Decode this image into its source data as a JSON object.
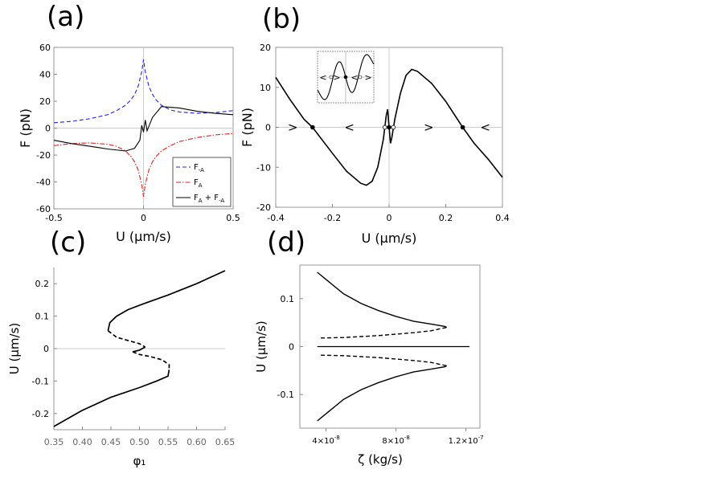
{
  "chart_data": [
    {
      "panel_label": "(a)",
      "type": "line",
      "xlabel": "U (μm/s)",
      "ylabel": "F (pN)",
      "xlim": [
        -0.5,
        0.5
      ],
      "ylim": [
        -60,
        60
      ],
      "xticks": [
        "-0.5",
        "0",
        "0.5"
      ],
      "yticks": [
        "-60",
        "-40",
        "-20",
        "0",
        "20",
        "40",
        "60"
      ],
      "legend_position": "bottom-right",
      "series": [
        {
          "name": "F-A",
          "legend_main": "F",
          "legend_sub": "-A",
          "color": "#2222ee",
          "dash": "dashed",
          "x": [
            -0.5,
            -0.4,
            -0.3,
            -0.2,
            -0.15,
            -0.1,
            -0.07,
            -0.05,
            -0.03,
            -0.01,
            0,
            0.01,
            0.03,
            0.05,
            0.07,
            0.1,
            0.15,
            0.2,
            0.3,
            0.4,
            0.5
          ],
          "y": [
            4,
            5,
            7,
            10,
            13,
            17,
            21,
            25,
            31,
            42,
            51,
            42,
            31,
            25,
            21,
            17,
            13.5,
            12,
            11,
            11.5,
            13
          ]
        },
        {
          "name": "FA",
          "legend_main": "F",
          "legend_sub": "A",
          "color": "#dd2222",
          "dash": "dashdot",
          "x": [
            -0.5,
            -0.4,
            -0.3,
            -0.2,
            -0.15,
            -0.1,
            -0.07,
            -0.05,
            -0.03,
            -0.01,
            0,
            0.01,
            0.03,
            0.05,
            0.07,
            0.1,
            0.15,
            0.2,
            0.3,
            0.4,
            0.5
          ],
          "y": [
            -13,
            -11.5,
            -11,
            -12,
            -13.5,
            -17,
            -21,
            -25,
            -31,
            -42,
            -51,
            -42,
            -31,
            -25,
            -21,
            -17,
            -13,
            -10,
            -7,
            -5,
            -4
          ]
        },
        {
          "name": "FA + F-A",
          "legend_main": "F",
          "legend_sub": "A",
          "legend_rest": " + F",
          "legend_sub2": "-A",
          "color": "#000000",
          "dash": "solid",
          "x": [
            -0.5,
            -0.4,
            -0.3,
            -0.2,
            -0.1,
            -0.05,
            -0.02,
            -0.01,
            0,
            0.01,
            0.02,
            0.05,
            0.1,
            0.2,
            0.3,
            0.4,
            0.5
          ],
          "y": [
            -9,
            -11.5,
            -13.5,
            -15.5,
            -17,
            -15,
            -9,
            2,
            -3,
            6,
            -2,
            8,
            16,
            15,
            12.5,
            11,
            10
          ]
        }
      ]
    },
    {
      "panel_label": "(b)",
      "type": "line",
      "xlabel": "U (μm/s)",
      "ylabel": "F (pN)",
      "xlim": [
        -0.4,
        0.4
      ],
      "ylim": [
        -20,
        20
      ],
      "xticks": [
        "-0.4",
        "-0.2",
        "0",
        "0.2",
        "0.4"
      ],
      "yticks": [
        "-20",
        "-10",
        "0",
        "10",
        "20"
      ],
      "series": [
        {
          "name": "force",
          "color": "#000000",
          "x": [
            -0.4,
            -0.35,
            -0.3,
            -0.27,
            -0.2,
            -0.15,
            -0.1,
            -0.08,
            -0.06,
            -0.04,
            -0.02,
            -0.01,
            -0.005,
            0,
            0.005,
            0.01,
            0.02,
            0.04,
            0.06,
            0.08,
            0.1,
            0.15,
            0.2,
            0.26,
            0.3,
            0.35,
            0.4
          ],
          "y": [
            12.5,
            7,
            2,
            0,
            -6.5,
            -11,
            -14,
            -14.5,
            -13.5,
            -10,
            -3,
            3,
            4.5,
            0,
            -4,
            -2.5,
            2,
            8.5,
            13,
            14.5,
            14,
            11,
            6.5,
            0,
            -4,
            -8,
            -12.5
          ]
        }
      ],
      "fixed_points": [
        {
          "x": -0.27,
          "stable": true
        },
        {
          "x": -0.015,
          "stable": false
        },
        {
          "x": 0,
          "stable": true
        },
        {
          "x": 0.015,
          "stable": false
        },
        {
          "x": 0.26,
          "stable": true
        }
      ],
      "flow_arrows": [
        {
          "x": -0.34,
          "glyph": ">"
        },
        {
          "x": -0.14,
          "glyph": "<"
        },
        {
          "x": 0.14,
          "glyph": ">"
        },
        {
          "x": 0.34,
          "glyph": "<"
        }
      ],
      "inset": {
        "glyphs_left": "<",
        "glyphs_mid": ">",
        "glyphs_mid2": "<",
        "glyphs_right": ">"
      }
    },
    {
      "panel_label": "(c)",
      "type": "line",
      "xlabel": "φ₁",
      "ylabel": "U (μm/s)",
      "xlim": [
        0.35,
        0.65
      ],
      "ylim": [
        -0.25,
        0.25
      ],
      "xticks": [
        "0.35",
        "0.40",
        "0.45",
        "0.50",
        "0.55",
        "0.60",
        "0.65"
      ],
      "yticks": [
        "-0.2",
        "-0.1",
        "0",
        "0.1",
        "0.2"
      ],
      "series": [
        {
          "name": "upper stable",
          "style": "solid",
          "x": [
            0.445,
            0.448,
            0.46,
            0.48,
            0.51,
            0.55,
            0.6,
            0.65
          ],
          "y": [
            0.055,
            0.08,
            0.1,
            0.12,
            0.14,
            0.165,
            0.2,
            0.24
          ]
        },
        {
          "name": "upper unstable",
          "style": "dashed",
          "x": [
            0.445,
            0.46,
            0.48,
            0.5,
            0.51
          ],
          "y": [
            0.055,
            0.035,
            0.025,
            0.015,
            0.005
          ]
        },
        {
          "name": "middle stable",
          "style": "solid",
          "x": [
            0.51,
            0.5,
            0.488
          ],
          "y": [
            0.005,
            -0.005,
            -0.01
          ]
        },
        {
          "name": "lower unstable",
          "style": "dashed",
          "x": [
            0.488,
            0.5,
            0.52,
            0.54,
            0.552,
            0.552
          ],
          "y": [
            -0.01,
            -0.018,
            -0.025,
            -0.035,
            -0.05,
            -0.065
          ]
        },
        {
          "name": "lower stable",
          "style": "solid",
          "x": [
            0.552,
            0.55,
            0.53,
            0.5,
            0.45,
            0.4,
            0.35
          ],
          "y": [
            -0.065,
            -0.085,
            -0.1,
            -0.12,
            -0.15,
            -0.19,
            -0.24
          ]
        }
      ]
    },
    {
      "panel_label": "(d)",
      "type": "line",
      "xlabel": "ζ (kg/s)",
      "ylabel": "U (μm/s)",
      "xlim": [
        2.5e-08,
        1.28e-07
      ],
      "ylim": [
        -0.17,
        0.17
      ],
      "xticks": [
        {
          "base": "4×10",
          "exp": "-8",
          "value": 4e-08
        },
        {
          "base": "8×10",
          "exp": "-8",
          "value": 8e-08
        },
        {
          "base": "1.2×10",
          "exp": "-7",
          "value": 1.2e-07
        }
      ],
      "yticks": [
        "-0.1",
        "0",
        "0.1"
      ],
      "series": [
        {
          "name": "upper stable",
          "style": "solid",
          "x": [
            3.5e-08,
            4e-08,
            5e-08,
            6e-08,
            7e-08,
            8e-08,
            9e-08,
            1e-07,
            1.08e-07,
            1.09e-07
          ],
          "y": [
            0.155,
            0.14,
            0.11,
            0.09,
            0.075,
            0.063,
            0.053,
            0.047,
            0.042,
            0.04
          ]
        },
        {
          "name": "upper unstable",
          "style": "dashed",
          "x": [
            3.7e-08,
            5e-08,
            6e-08,
            7e-08,
            8e-08,
            9e-08,
            1e-07,
            1.09e-07
          ],
          "y": [
            0.018,
            0.019,
            0.021,
            0.023,
            0.026,
            0.029,
            0.033,
            0.04
          ]
        },
        {
          "name": "zero",
          "style": "solid",
          "x": [
            3.5e-08,
            1.22e-07
          ],
          "y": [
            0,
            0
          ]
        },
        {
          "name": "lower unstable",
          "style": "dashed",
          "x": [
            3.7e-08,
            5e-08,
            6e-08,
            7e-08,
            8e-08,
            9e-08,
            1e-07,
            1.09e-07
          ],
          "y": [
            -0.018,
            -0.019,
            -0.021,
            -0.023,
            -0.026,
            -0.029,
            -0.033,
            -0.04
          ]
        },
        {
          "name": "lower stable",
          "style": "solid",
          "x": [
            3.5e-08,
            4e-08,
            5e-08,
            6e-08,
            7e-08,
            8e-08,
            9e-08,
            1e-07,
            1.08e-07,
            1.09e-07
          ],
          "y": [
            -0.155,
            -0.14,
            -0.11,
            -0.09,
            -0.075,
            -0.063,
            -0.053,
            -0.047,
            -0.042,
            -0.04
          ]
        }
      ]
    }
  ]
}
